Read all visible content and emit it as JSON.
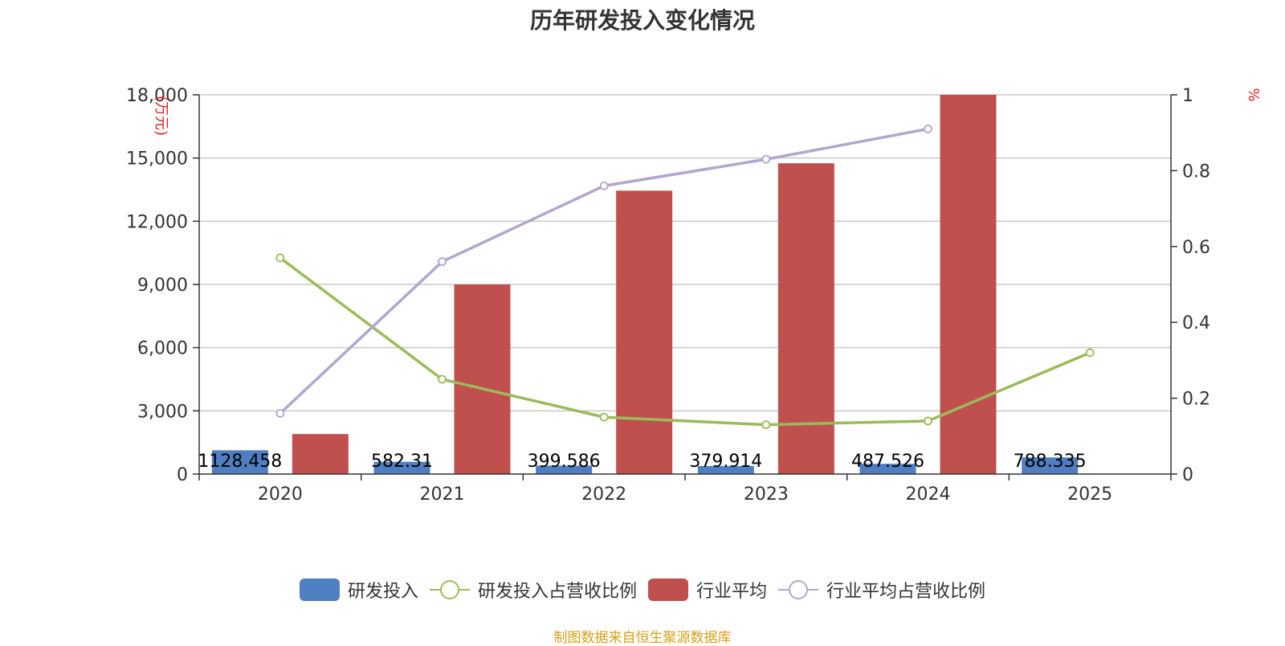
{
  "title": "历年研发投入变化情况",
  "source": "制图数据来自恒生聚源数据库",
  "chart_data": {
    "type": "bar",
    "categories": [
      "2020",
      "2021",
      "2022",
      "2023",
      "2024",
      "2025"
    ],
    "y_left": {
      "label": "(万元)",
      "ylim": [
        0,
        18000
      ],
      "ticks": [
        0,
        3000,
        6000,
        9000,
        12000,
        15000,
        18000
      ],
      "tick_labels": [
        "0",
        "3,000",
        "6,000",
        "9,000",
        "12,000",
        "15,000",
        "18,000"
      ]
    },
    "y_right": {
      "label": "%",
      "ylim": [
        0,
        1
      ],
      "ticks": [
        0,
        0.2,
        0.4,
        0.6,
        0.8,
        1
      ],
      "tick_labels": [
        "0",
        "0.2",
        "0.4",
        "0.6",
        "0.8",
        "1"
      ]
    },
    "grid": true,
    "legend_position": "bottom",
    "series": [
      {
        "name": "研发投入",
        "kind": "bar",
        "axis": "left",
        "color": "#4f7fc2",
        "values": [
          1128.458,
          582.31,
          399.586,
          379.914,
          487.526,
          788.335
        ],
        "data_labels": [
          "1128.458",
          "582.31",
          "399.586",
          "379.914",
          "487.526",
          "788.335"
        ]
      },
      {
        "name": "研发投入占营收比例",
        "kind": "line",
        "axis": "right",
        "color": "#9bbb59",
        "values": [
          0.57,
          0.25,
          0.15,
          0.13,
          0.14,
          0.32
        ]
      },
      {
        "name": "行业平均",
        "kind": "bar",
        "axis": "left",
        "color": "#c0504d",
        "values": [
          1900,
          9000,
          13450,
          14750,
          18000,
          null
        ]
      },
      {
        "name": "行业平均占营收比例",
        "kind": "line",
        "axis": "right",
        "color": "#b2a5cf",
        "values": [
          0.16,
          0.56,
          0.76,
          0.83,
          0.91,
          null
        ]
      }
    ]
  }
}
